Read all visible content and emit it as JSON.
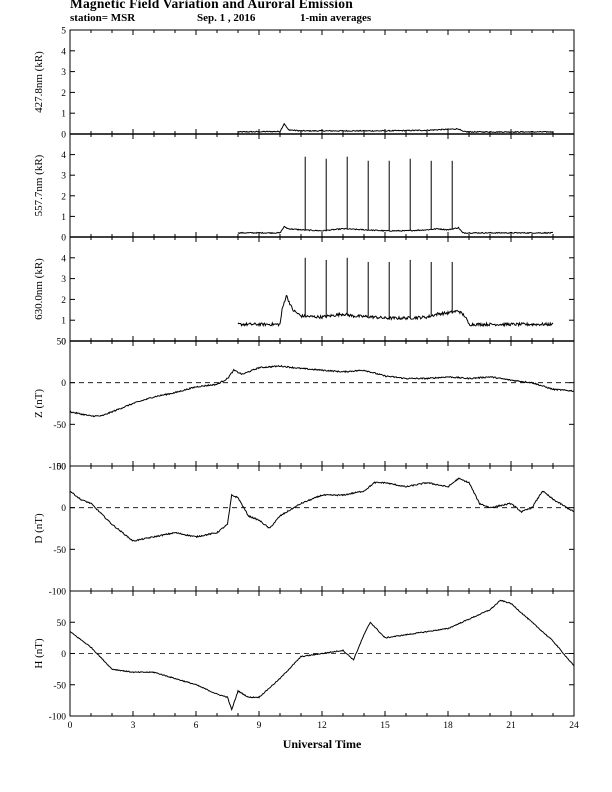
{
  "header": {
    "title": "Magnetic Field Variation and Auroral Emission",
    "station": "station= MSR",
    "date": "Sep. 1 , 2016",
    "averaging": "1-min averages"
  },
  "chart_data": [
    {
      "type": "line",
      "ylabel": "427.8nm (kR)",
      "ylim": [
        0,
        5
      ],
      "yticks": [
        0,
        1,
        2,
        3,
        4,
        5
      ],
      "xlim": [
        0,
        24
      ],
      "zero_dashed": false,
      "series": [
        {
          "x": [
            8.0,
            10.0,
            10.2,
            10.4,
            11.0,
            13.0,
            15.0,
            17.0,
            18.5,
            18.7,
            19.0,
            21.0,
            23.0
          ],
          "y": [
            0.1,
            0.12,
            0.5,
            0.2,
            0.15,
            0.15,
            0.15,
            0.18,
            0.25,
            0.12,
            0.1,
            0.1,
            0.1
          ]
        }
      ]
    },
    {
      "type": "line",
      "ylabel": "557.7nm (kR)",
      "ylim": [
        0,
        5
      ],
      "yticks": [
        0,
        1,
        2,
        3,
        4
      ],
      "xlim": [
        0,
        24
      ],
      "zero_dashed": false,
      "series": [
        {
          "x": [
            8.0,
            10.0,
            10.2,
            10.4,
            11.0,
            12.0,
            13.0,
            14.0,
            15.0,
            16.0,
            17.0,
            17.5,
            18.0,
            18.5,
            18.7,
            19.0,
            21.0,
            23.0
          ],
          "y": [
            0.2,
            0.2,
            0.5,
            0.4,
            0.35,
            0.3,
            0.4,
            0.35,
            0.3,
            0.3,
            0.35,
            0.4,
            0.35,
            0.45,
            0.2,
            0.2,
            0.2,
            0.2
          ]
        }
      ],
      "spikes": {
        "x": [
          11.2,
          12.2,
          13.2,
          14.2,
          15.2,
          16.2,
          17.2,
          18.2
        ],
        "y": [
          3.9,
          3.8,
          3.9,
          3.7,
          3.7,
          3.8,
          3.7,
          3.7
        ]
      }
    },
    {
      "type": "line",
      "ylabel": "630.0nm (kR)",
      "ylim": [
        0,
        5
      ],
      "yticks": [
        0,
        1,
        2,
        3,
        4
      ],
      "xlim": [
        0,
        24
      ],
      "zero_dashed": false,
      "series": [
        {
          "x": [
            8.0,
            10.0,
            10.1,
            10.3,
            10.6,
            11.0,
            12.0,
            13.0,
            13.5,
            14.5,
            15.0,
            16.0,
            17.0,
            17.5,
            18.0,
            18.5,
            18.8,
            19.0,
            21.0,
            23.0
          ],
          "y": [
            0.8,
            0.8,
            1.5,
            2.2,
            1.5,
            1.2,
            1.15,
            1.3,
            1.2,
            1.15,
            1.1,
            1.1,
            1.15,
            1.3,
            1.35,
            1.45,
            1.2,
            0.8,
            0.8,
            0.8
          ]
        }
      ],
      "spikes": {
        "x": [
          11.2,
          12.2,
          13.2,
          14.2,
          15.2,
          16.2,
          17.2,
          18.2
        ],
        "y": [
          4.0,
          3.9,
          4.0,
          3.8,
          3.8,
          3.9,
          3.8,
          3.8
        ]
      }
    },
    {
      "type": "line",
      "ylabel": "Z (nT)",
      "ylim": [
        -100,
        50
      ],
      "yticks": [
        -100,
        -50,
        0,
        50
      ],
      "xlim": [
        0,
        24
      ],
      "zero_dashed": true,
      "series": [
        {
          "x": [
            0,
            1,
            1.5,
            2,
            3,
            4,
            5,
            6,
            7,
            7.5,
            7.8,
            8.2,
            9,
            10,
            11,
            12,
            13,
            14,
            15,
            16,
            17,
            18,
            19,
            20,
            21,
            22,
            23,
            24
          ],
          "y": [
            -35,
            -40,
            -40,
            -35,
            -25,
            -17,
            -12,
            -5,
            -2,
            5,
            15,
            10,
            18,
            20,
            17,
            15,
            13,
            15,
            8,
            5,
            5,
            7,
            5,
            7,
            3,
            0,
            -8,
            -10
          ]
        }
      ]
    },
    {
      "type": "line",
      "ylabel": "D (nT)",
      "ylim": [
        -100,
        50
      ],
      "yticks": [
        -100,
        -50,
        0,
        50
      ],
      "xlim": [
        0,
        24
      ],
      "zero_dashed": true,
      "series": [
        {
          "x": [
            0,
            0.5,
            1,
            2,
            2.5,
            3,
            4,
            5,
            6,
            7,
            7.5,
            7.7,
            8,
            8.5,
            9,
            9.5,
            10,
            11,
            12,
            13,
            14,
            14.5,
            15,
            16,
            17,
            18,
            18.5,
            19,
            19.5,
            20,
            21,
            21.5,
            22,
            22.5,
            23,
            24
          ],
          "y": [
            20,
            10,
            5,
            -20,
            -30,
            -40,
            -35,
            -30,
            -35,
            -30,
            -20,
            15,
            12,
            -10,
            -15,
            -25,
            -10,
            5,
            15,
            15,
            20,
            30,
            30,
            25,
            30,
            25,
            35,
            30,
            5,
            0,
            5,
            -5,
            0,
            20,
            10,
            -5
          ]
        }
      ]
    },
    {
      "type": "line",
      "ylabel": "H (nT)",
      "ylim": [
        -100,
        100
      ],
      "yticks": [
        -100,
        -50,
        0,
        50
      ],
      "xlim": [
        0,
        24
      ],
      "xticks": [
        0,
        3,
        6,
        9,
        12,
        15,
        18,
        21,
        24
      ],
      "xlabel": "Universal Time",
      "zero_dashed": true,
      "series": [
        {
          "x": [
            0,
            1,
            2,
            3,
            4,
            5,
            6,
            7,
            7.5,
            7.7,
            8,
            8.5,
            9,
            10,
            11,
            12,
            13,
            13.5,
            14,
            14.3,
            15,
            16,
            17,
            18,
            19,
            20,
            20.5,
            21,
            22,
            23,
            23.5,
            24
          ],
          "y": [
            35,
            10,
            -25,
            -30,
            -30,
            -40,
            -50,
            -65,
            -70,
            -90,
            -60,
            -70,
            -70,
            -40,
            -5,
            0,
            5,
            -10,
            30,
            50,
            25,
            30,
            35,
            40,
            55,
            70,
            85,
            80,
            50,
            20,
            0,
            -20
          ]
        }
      ]
    }
  ]
}
